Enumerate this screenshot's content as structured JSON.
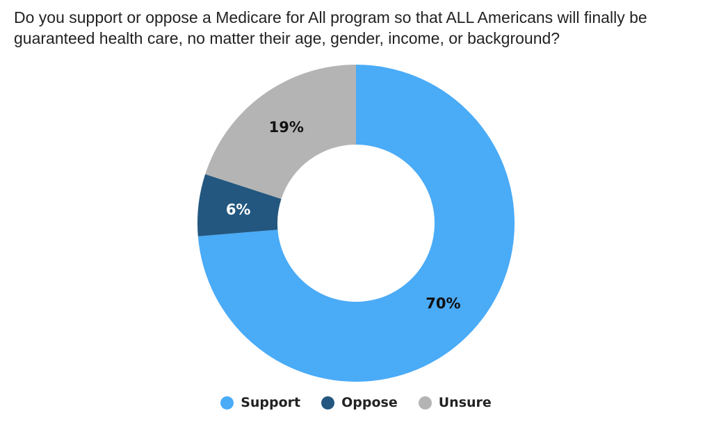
{
  "chart_data": {
    "type": "pie",
    "donut": true,
    "title": "Do you support or oppose a Medicare for All program so that ALL Americans will finally be guaranteed health care, no matter their age, gender, income, or background?",
    "slices": [
      {
        "name": "Support",
        "value": 70,
        "label": "70%",
        "color": "#4aabf7",
        "label_color": "#111111"
      },
      {
        "name": "Oppose",
        "value": 6,
        "label": "6%",
        "color": "#23577f",
        "label_color": "#ffffff"
      },
      {
        "name": "Unsure",
        "value": 19,
        "label": "19%",
        "color": "#b4b4b4",
        "label_color": "#111111"
      }
    ],
    "legend_position": "bottom-center"
  }
}
